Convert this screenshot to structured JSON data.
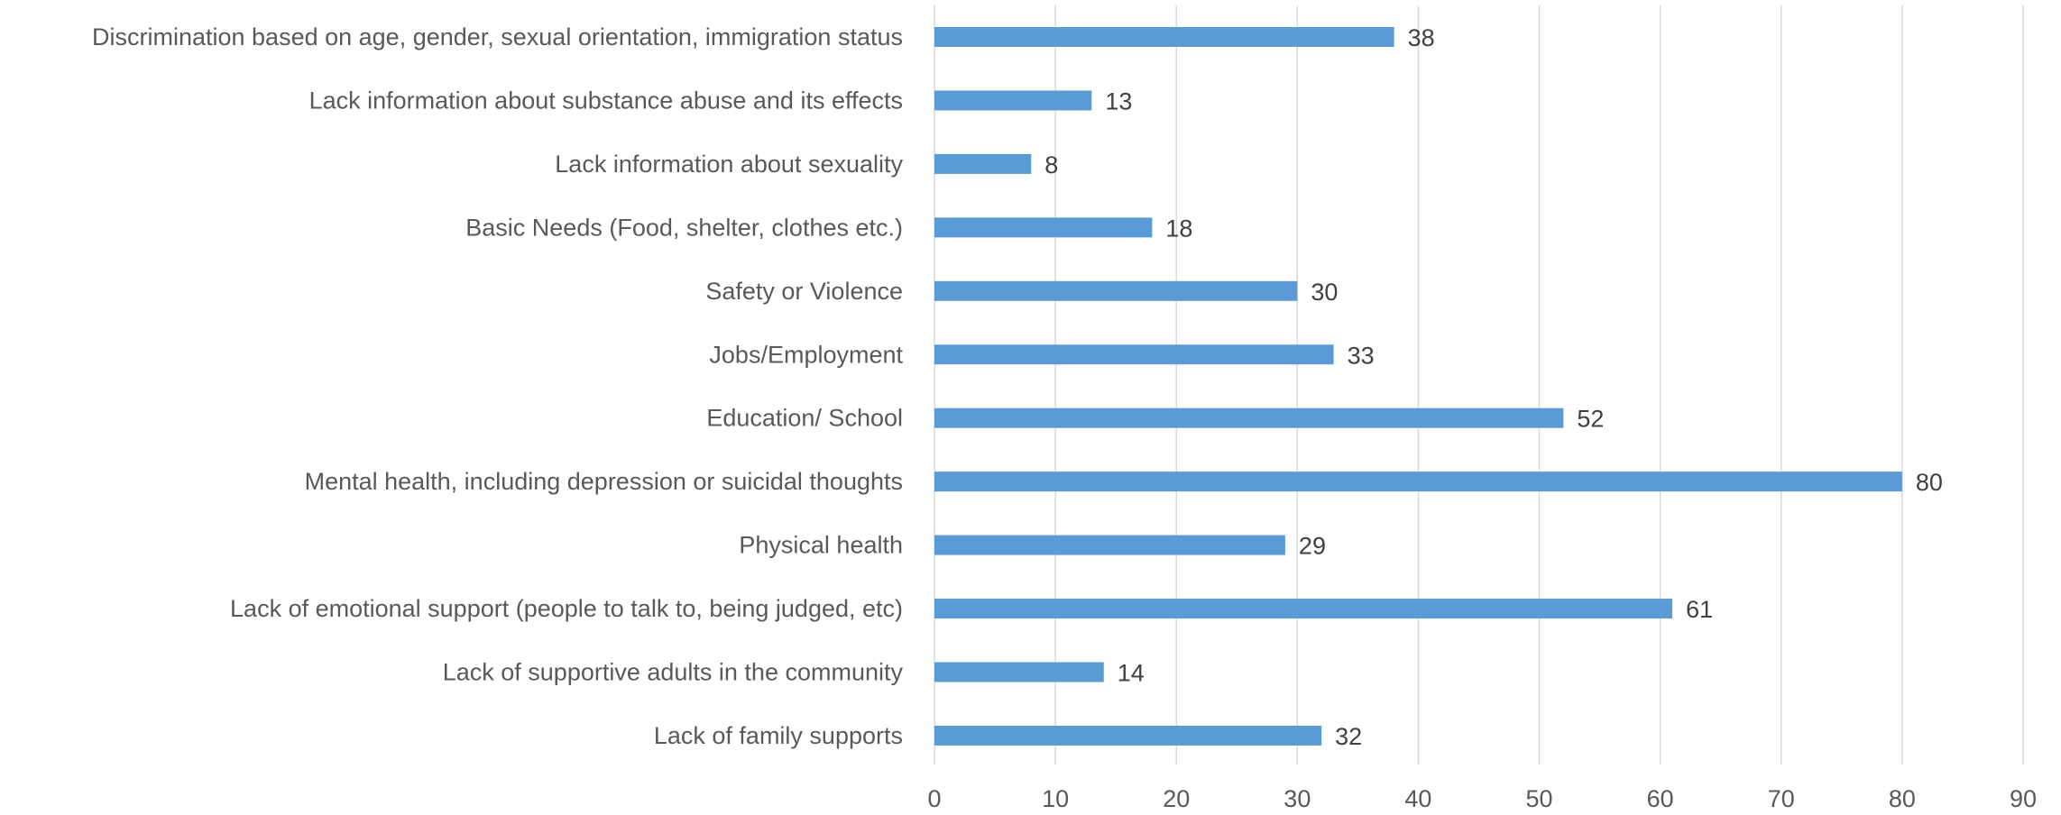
{
  "chart_data": {
    "type": "bar",
    "orientation": "horizontal",
    "title": "",
    "xlabel": "",
    "ylabel": "",
    "categories": [
      "Discrimination based on age, gender, sexual orientation, immigration status",
      "Lack information about substance abuse and its effects",
      "Lack information about sexuality",
      "Basic Needs (Food, shelter, clothes etc.)",
      "Safety or Violence",
      "Jobs/Employment",
      "Education/ School",
      "Mental health, including depression or suicidal thoughts",
      "Physical health",
      "Lack of emotional support (people to talk to, being judged, etc)",
      "Lack of supportive adults in the community",
      "Lack of family supports"
    ],
    "values": [
      38,
      13,
      8,
      18,
      30,
      33,
      52,
      80,
      29,
      61,
      14,
      32
    ],
    "xlim": [
      0,
      90
    ],
    "xticks": [
      0,
      10,
      20,
      30,
      40,
      50,
      60,
      70,
      80,
      90
    ],
    "grid": "vertical",
    "data_labels": true,
    "bar_color": "#5b9bd5",
    "grid_color": "#d9d9d9"
  }
}
